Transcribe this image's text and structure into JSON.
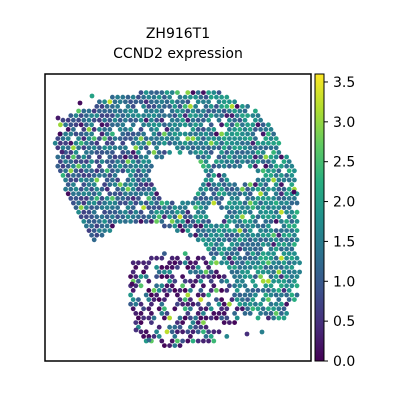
{
  "chart_data": {
    "type": "scatter",
    "title_line1": "ZH916T1",
    "title_line2": "CCND2 expression",
    "xlabel": "",
    "ylabel": "",
    "colorbar": {
      "colormap": "viridis",
      "range": [
        0.0,
        3.6
      ],
      "ticks": [
        0.0,
        0.5,
        1.0,
        1.5,
        2.0,
        2.5,
        3.0,
        3.5
      ],
      "tick_labels": [
        "0.0",
        "0.5",
        "1.0",
        "1.5",
        "2.0",
        "2.5",
        "3.0",
        "3.5"
      ]
    },
    "points_description_values": {
      "dominant_range": [
        0.5,
        2.0
      ],
      "high_outlier_max": 3.5
    },
    "grid": false,
    "legend": "none"
  }
}
